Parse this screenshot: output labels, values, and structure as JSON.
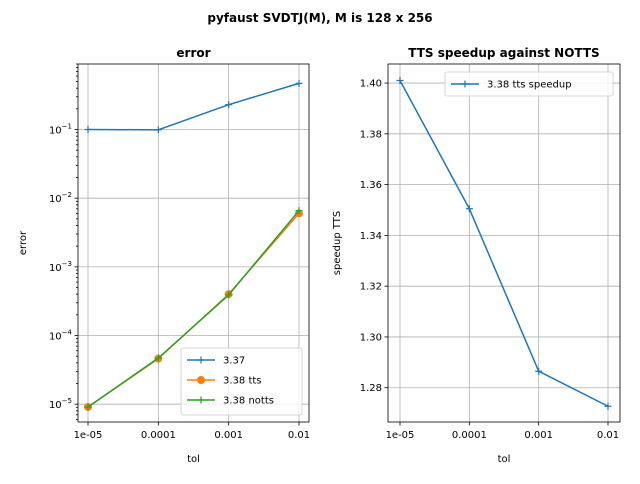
{
  "figure_title": "pyfaust SVDTJ(M), M is 128 x 256",
  "colors": {
    "blue": "#1f77b4",
    "orange": "#ff7f0e",
    "green": "#2ca02c"
  },
  "chart_data": [
    {
      "type": "line",
      "title": "error",
      "xlabel": "tol",
      "ylabel": "error",
      "x": [
        1e-05,
        0.0001,
        0.001,
        0.01
      ],
      "xticklabels": [
        "1e-05",
        "0.0001",
        "0.001",
        "0.01"
      ],
      "x_scale": "log",
      "y_scale": "log",
      "yticks": [
        1e-05,
        0.0001,
        0.001,
        0.01,
        0.1
      ],
      "yticklabels": [
        {
          "base": "10",
          "exp": "−5"
        },
        {
          "base": "10",
          "exp": "−4"
        },
        {
          "base": "10",
          "exp": "−3"
        },
        {
          "base": "10",
          "exp": "−2"
        },
        {
          "base": "10",
          "exp": "−1"
        }
      ],
      "ylim": [
        5.5e-06,
        0.9
      ],
      "grid": true,
      "legend_position": "lower-right",
      "series": [
        {
          "name": "3.37",
          "values": [
            0.1,
            0.099,
            0.23,
            0.47
          ],
          "color": "#1f77b4",
          "marker": "plus"
        },
        {
          "name": "3.38 tts",
          "values": [
            9.1e-06,
            4.6e-05,
            0.0004,
            0.006
          ],
          "color": "#ff7f0e",
          "marker": "circle"
        },
        {
          "name": "3.38 notts",
          "values": [
            9.1e-06,
            4.7e-05,
            0.00039,
            0.0066
          ],
          "color": "#2ca02c",
          "marker": "plus"
        }
      ]
    },
    {
      "type": "line",
      "title": "TTS speedup against NOTTS",
      "xlabel": "tol",
      "ylabel": "speedup TTS",
      "x": [
        1e-05,
        0.0001,
        0.001,
        0.01
      ],
      "xticklabels": [
        "1e-05",
        "0.0001",
        "0.001",
        "0.01"
      ],
      "x_scale": "log",
      "y_scale": "linear",
      "yticks": [
        1.28,
        1.3,
        1.32,
        1.34,
        1.36,
        1.38,
        1.4
      ],
      "yticklabels": [
        "1.28",
        "1.30",
        "1.32",
        "1.34",
        "1.36",
        "1.38",
        "1.40"
      ],
      "ylim": [
        1.2665,
        1.4075
      ],
      "grid": true,
      "legend_position": "upper-right",
      "series": [
        {
          "name": "3.38 tts speedup",
          "values": [
            1.401,
            1.3505,
            1.2865,
            1.2727
          ],
          "color": "#1f77b4",
          "marker": "plus"
        }
      ]
    }
  ]
}
